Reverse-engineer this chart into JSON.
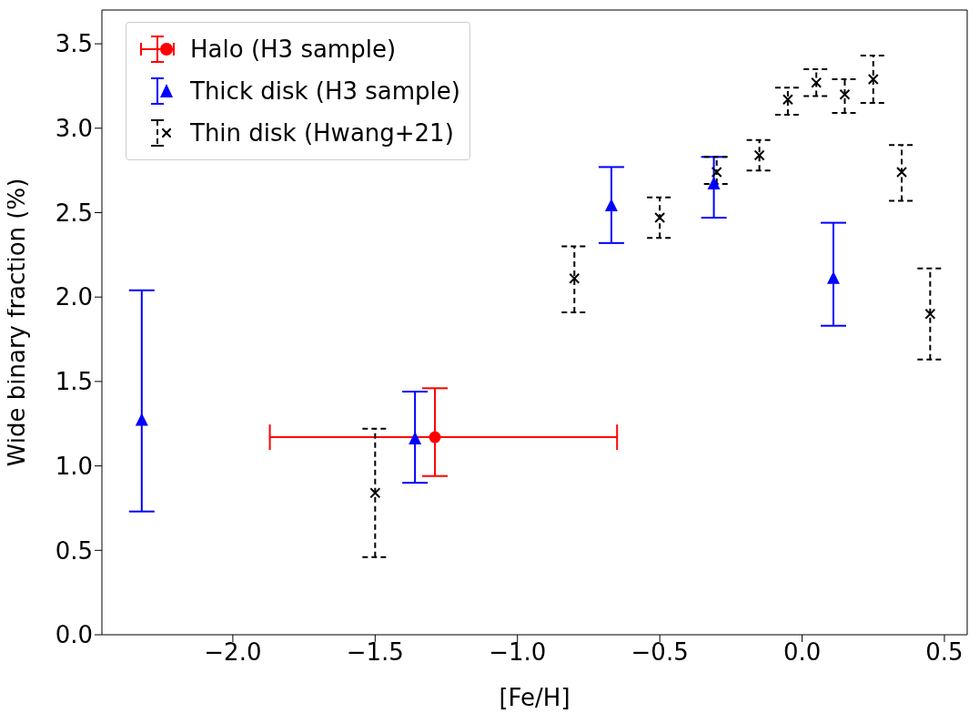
{
  "chart_data": {
    "type": "scatter",
    "xlabel": "[Fe/H]",
    "ylabel": "Wide binary fraction (%)",
    "xlim": [
      -2.46,
      0.58
    ],
    "ylim": [
      0,
      3.7
    ],
    "xticks": [
      {
        "value": -2,
        "label": "−2.0"
      },
      {
        "value": -1.5,
        "label": "−1.5"
      },
      {
        "value": -1,
        "label": "−1.0"
      },
      {
        "value": -0.5,
        "label": "−0.5"
      },
      {
        "value": 0,
        "label": "0.0"
      },
      {
        "value": 0.5,
        "label": "0.5"
      }
    ],
    "yticks": [
      {
        "value": 0,
        "label": "0.0"
      },
      {
        "value": 0.5,
        "label": "0.5"
      },
      {
        "value": 1,
        "label": "1.0"
      },
      {
        "value": 1.5,
        "label": "1.5"
      },
      {
        "value": 2,
        "label": "2.0"
      },
      {
        "value": 2.5,
        "label": "2.5"
      },
      {
        "value": 3,
        "label": "3.0"
      },
      {
        "value": 3.5,
        "label": "3.5"
      }
    ],
    "grid": false,
    "legend": "top left",
    "series": [
      {
        "name": "Halo (H3 sample)",
        "color": "#ff0000",
        "marker": "circle",
        "x": [
          -1.29
        ],
        "values": [
          1.17
        ],
        "errors": [
          [
            0.94,
            1.46
          ]
        ],
        "xerrors": [
          [
            -1.87,
            -0.65
          ]
        ]
      },
      {
        "name": "Thick disk (H3 sample)",
        "color": "#0000ff",
        "marker": "triangle",
        "x": [
          -2.32,
          -1.36,
          -0.67,
          -0.31,
          0.11
        ],
        "values": [
          1.27,
          1.16,
          2.54,
          2.67,
          2.11
        ],
        "errors": [
          [
            0.73,
            2.04
          ],
          [
            0.9,
            1.44
          ],
          [
            2.32,
            2.77
          ],
          [
            2.47,
            2.83
          ],
          [
            1.83,
            2.44
          ]
        ]
      },
      {
        "name": "Thin disk (Hwang+21)",
        "color": "#000000",
        "marker": "cross",
        "line_style": "dashed",
        "x": [
          -1.5,
          -0.8,
          -0.5,
          -0.3,
          -0.15,
          -0.05,
          0.05,
          0.15,
          0.25,
          0.35,
          0.45
        ],
        "values": [
          0.84,
          2.11,
          2.47,
          2.74,
          2.84,
          3.17,
          3.27,
          3.2,
          3.29,
          2.74,
          1.9
        ],
        "errors": [
          [
            0.46,
            1.22
          ],
          [
            1.91,
            2.3
          ],
          [
            2.35,
            2.59
          ],
          [
            2.67,
            2.83
          ],
          [
            2.75,
            2.93
          ],
          [
            3.08,
            3.24
          ],
          [
            3.19,
            3.35
          ],
          [
            3.09,
            3.29
          ],
          [
            3.15,
            3.43
          ],
          [
            2.57,
            2.9
          ],
          [
            1.63,
            2.17
          ]
        ]
      }
    ]
  }
}
